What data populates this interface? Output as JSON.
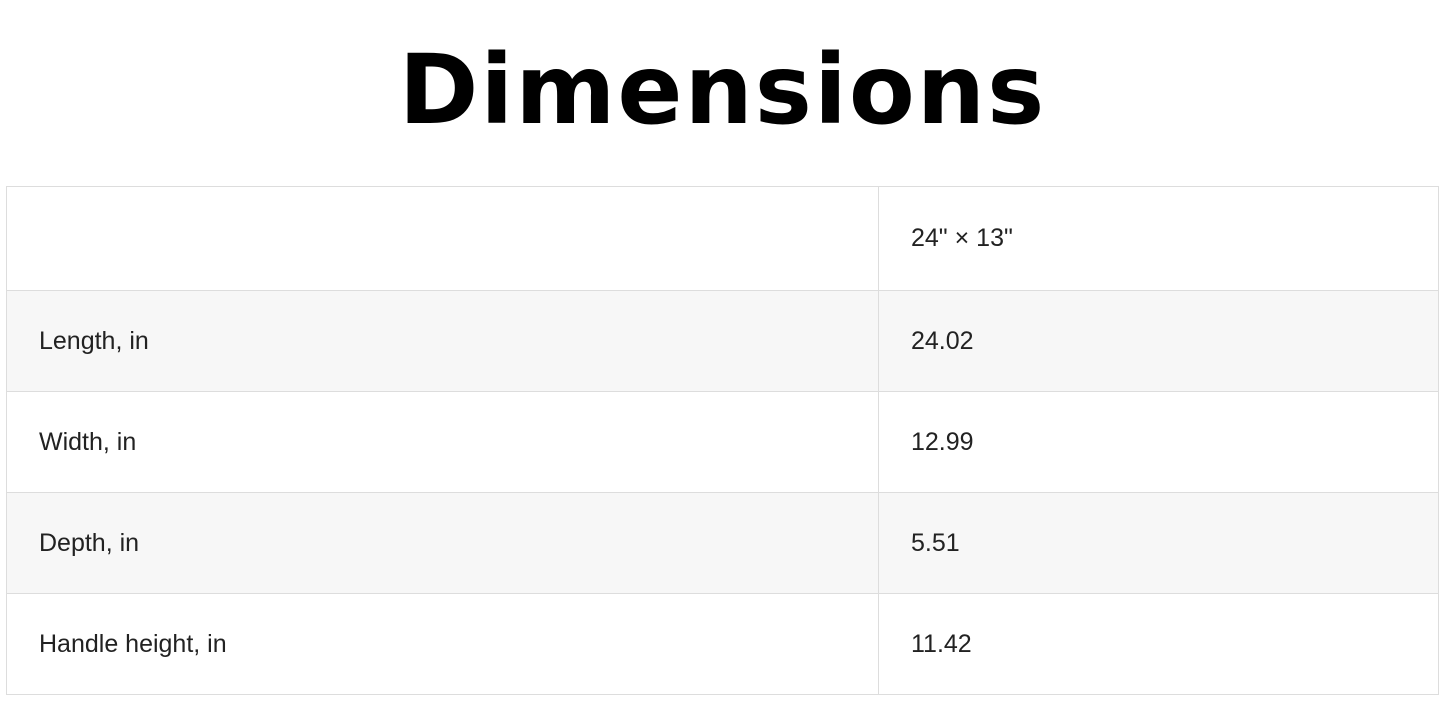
{
  "title": "Dimensions",
  "header": [
    "",
    "24\" × 13\""
  ],
  "rows": [
    [
      "Length, in",
      "24.02"
    ],
    [
      "Width, in",
      "12.99"
    ],
    [
      "Depth, in",
      "5.51"
    ],
    [
      "Handle height, in",
      "11.42"
    ]
  ]
}
